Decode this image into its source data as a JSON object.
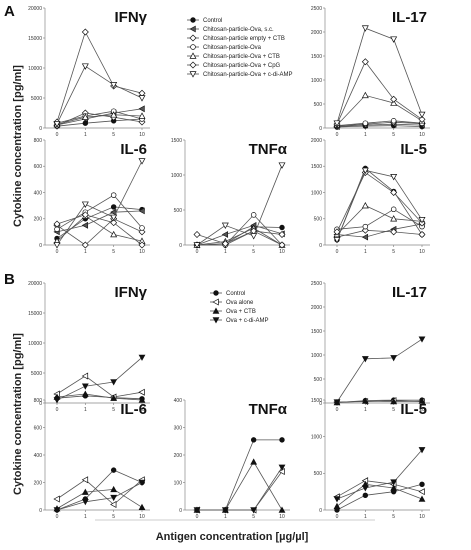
{
  "figure": {
    "panel_labels": [
      "A",
      "B"
    ],
    "y_axis_label": "Cytokine concentration [pg/ml]",
    "x_axis_label": "Antigen concentration [µg/µl]"
  },
  "legends": {
    "A": [
      "Control",
      "Chitosan-particle-Ova, s.c.",
      "Chitosan-particle empty + CTB",
      "Chitosan-particle-Ova",
      "Chitosan-particle-Ova + CTB",
      "Chitosan-particle-Ova + CpG",
      "Chitosan-particle-Ova + c-di-AMP"
    ],
    "B": [
      "Control",
      "Ova alone",
      "Ova + CTB",
      "Ova + c-di-AMP"
    ]
  },
  "chart_data": [
    {
      "type": "line",
      "group": "A",
      "title": "IFNγ",
      "x": [
        "0",
        "1",
        "5",
        "10"
      ],
      "ylim": [
        0,
        20000
      ],
      "yticks": [
        "0",
        "5000",
        "10000",
        "15000",
        "20000"
      ],
      "series": [
        {
          "name": "Control",
          "values": [
            300,
            800,
            1200,
            1500
          ]
        },
        {
          "name": "Chitosan-particle-Ova, s.c.",
          "values": [
            500,
            1500,
            2500,
            3200
          ]
        },
        {
          "name": "Chitosan-particle empty + CTB",
          "values": [
            400,
            2500,
            1800,
            1000
          ]
        },
        {
          "name": "Chitosan-particle-Ova",
          "values": [
            800,
            2000,
            2800,
            1500
          ]
        },
        {
          "name": "Chitosan-particle-Ova + CTB",
          "values": [
            600,
            1800,
            2200,
            2000
          ]
        },
        {
          "name": "Chitosan-particle-Ova + CpG",
          "values": [
            1000,
            16000,
            7000,
            5800
          ]
        },
        {
          "name": "Chitosan-particle-Ova + c-di-AMP",
          "values": [
            700,
            10300,
            7200,
            5000
          ]
        }
      ]
    },
    {
      "type": "line",
      "group": "A",
      "title": "IL-17",
      "x": [
        "0",
        "1",
        "5",
        "10"
      ],
      "ylim": [
        0,
        2500
      ],
      "yticks": [
        "0",
        "500",
        "1000",
        "1500",
        "2000",
        "2500"
      ],
      "series": [
        {
          "name": "Control",
          "values": [
            20,
            40,
            50,
            30
          ]
        },
        {
          "name": "Chitosan-particle-Ova, s.c.",
          "values": [
            30,
            60,
            80,
            60
          ]
        },
        {
          "name": "Chitosan-particle empty + CTB",
          "values": [
            40,
            80,
            120,
            90
          ]
        },
        {
          "name": "Chitosan-particle-Ova",
          "values": [
            50,
            100,
            150,
            100
          ]
        },
        {
          "name": "Chitosan-particle-Ova + CTB",
          "values": [
            60,
            680,
            520,
            150
          ]
        },
        {
          "name": "Chitosan-particle-Ova + CpG",
          "values": [
            80,
            1380,
            600,
            180
          ]
        },
        {
          "name": "Chitosan-particle-Ova + c-di-AMP",
          "values": [
            100,
            2080,
            1850,
            280
          ]
        }
      ]
    },
    {
      "type": "line",
      "group": "A",
      "title": "IL-6",
      "x": [
        "0",
        "1",
        "5",
        "10"
      ],
      "ylim": [
        0,
        800
      ],
      "yticks": [
        "0",
        "200",
        "400",
        "600",
        "800"
      ],
      "series": [
        {
          "name": "Control",
          "values": [
            50,
            200,
            290,
            270
          ]
        },
        {
          "name": "Chitosan-particle-Ova, s.c.",
          "values": [
            100,
            150,
            250,
            260
          ]
        },
        {
          "name": "Chitosan-particle empty + CTB",
          "values": [
            150,
            0,
            200,
            100
          ]
        },
        {
          "name": "Chitosan-particle-Ova",
          "values": [
            120,
            250,
            380,
            130
          ]
        },
        {
          "name": "Chitosan-particle-Ova + CTB",
          "values": [
            30,
            220,
            80,
            30
          ]
        },
        {
          "name": "Chitosan-particle-Ova + CpG",
          "values": [
            160,
            230,
            170,
            0
          ]
        },
        {
          "name": "Chitosan-particle-Ova + c-di-AMP",
          "values": [
            0,
            310,
            210,
            640
          ]
        }
      ]
    },
    {
      "type": "line",
      "group": "A",
      "title": "TNFα",
      "x": [
        "0",
        "1",
        "5",
        "10"
      ],
      "ylim": [
        0,
        1500
      ],
      "yticks": [
        "0",
        "500",
        "1000",
        "1500"
      ],
      "series": [
        {
          "name": "Control",
          "values": [
            0,
            20,
            260,
            250
          ]
        },
        {
          "name": "Chitosan-particle-Ova, s.c.",
          "values": [
            0,
            150,
            280,
            160
          ]
        },
        {
          "name": "Chitosan-particle empty + CTB",
          "values": [
            0,
            0,
            200,
            150
          ]
        },
        {
          "name": "Chitosan-particle-Ova",
          "values": [
            0,
            0,
            430,
            0
          ]
        },
        {
          "name": "Chitosan-particle-Ova + CTB",
          "values": [
            0,
            50,
            240,
            0
          ]
        },
        {
          "name": "Chitosan-particle-Ova + CpG",
          "values": [
            150,
            20,
            200,
            0
          ]
        },
        {
          "name": "Chitosan-particle-Ova + c-di-AMP",
          "values": [
            0,
            280,
            130,
            1140
          ]
        }
      ]
    },
    {
      "type": "line",
      "group": "A",
      "title": "IL-5",
      "x": [
        "0",
        "1",
        "5",
        "10"
      ],
      "ylim": [
        0,
        2000
      ],
      "yticks": [
        "0",
        "500",
        "1000",
        "1500",
        "2000"
      ],
      "series": [
        {
          "name": "Control",
          "values": [
            100,
            1460,
            1020,
            200
          ]
        },
        {
          "name": "Chitosan-particle-Ova, s.c.",
          "values": [
            200,
            150,
            300,
            400
          ]
        },
        {
          "name": "Chitosan-particle empty + CTB",
          "values": [
            150,
            280,
            250,
            200
          ]
        },
        {
          "name": "Chitosan-particle-Ova",
          "values": [
            300,
            350,
            680,
            350
          ]
        },
        {
          "name": "Chitosan-particle-Ova + CTB",
          "values": [
            200,
            750,
            500,
            450
          ]
        },
        {
          "name": "Chitosan-particle-Ova + CpG",
          "values": [
            250,
            1380,
            1000,
            420
          ]
        },
        {
          "name": "Chitosan-particle-Ova + c-di-AMP",
          "values": [
            100,
            1420,
            1300,
            480
          ]
        }
      ]
    },
    {
      "type": "line",
      "group": "B",
      "title": "IFNγ",
      "x": [
        "0",
        "1",
        "5",
        "10"
      ],
      "ylim": [
        0,
        20000
      ],
      "yticks": [
        "0",
        "5000",
        "10000",
        "15000",
        "20000"
      ],
      "series": [
        {
          "name": "Control",
          "values": [
            800,
            1200,
            900,
            700
          ]
        },
        {
          "name": "Ova alone",
          "values": [
            1500,
            4500,
            1000,
            1800
          ]
        },
        {
          "name": "Ova + CTB",
          "values": [
            1000,
            1500,
            800,
            500
          ]
        },
        {
          "name": "Ova + c-di-AMP",
          "values": [
            500,
            2800,
            3500,
            7600
          ]
        }
      ]
    },
    {
      "type": "line",
      "group": "B",
      "title": "IL-17",
      "x": [
        "0",
        "1",
        "5",
        "10"
      ],
      "ylim": [
        0,
        2500
      ],
      "yticks": [
        "0",
        "500",
        "1000",
        "1500",
        "2000",
        "2500"
      ],
      "series": [
        {
          "name": "Control",
          "values": [
            10,
            50,
            60,
            60
          ]
        },
        {
          "name": "Ova alone",
          "values": [
            20,
            30,
            50,
            30
          ]
        },
        {
          "name": "Ova + CTB",
          "values": [
            10,
            40,
            30,
            40
          ]
        },
        {
          "name": "Ova + c-di-AMP",
          "values": [
            20,
            920,
            940,
            1330
          ]
        }
      ]
    },
    {
      "type": "line",
      "group": "B",
      "title": "IL-6",
      "x": [
        "0",
        "1",
        "5",
        "10"
      ],
      "ylim": [
        0,
        800
      ],
      "yticks": [
        "0",
        "200",
        "400",
        "600",
        "800"
      ],
      "series": [
        {
          "name": "Control",
          "values": [
            0,
            80,
            290,
            200
          ]
        },
        {
          "name": "Ova alone",
          "values": [
            80,
            220,
            40,
            220
          ]
        },
        {
          "name": "Ova + CTB",
          "values": [
            10,
            130,
            150,
            20
          ]
        },
        {
          "name": "Ova + c-di-AMP",
          "values": [
            0,
            60,
            90,
            200
          ]
        }
      ]
    },
    {
      "type": "line",
      "group": "B",
      "title": "TNFα",
      "x": [
        "0",
        "1",
        "5",
        "10"
      ],
      "ylim": [
        0,
        400
      ],
      "yticks": [
        "0",
        "100",
        "200",
        "300",
        "400"
      ],
      "series": [
        {
          "name": "Control",
          "values": [
            0,
            0,
            255,
            255
          ]
        },
        {
          "name": "Ova alone",
          "values": [
            0,
            0,
            0,
            140
          ]
        },
        {
          "name": "Ova + CTB",
          "values": [
            0,
            0,
            175,
            0
          ]
        },
        {
          "name": "Ova + c-di-AMP",
          "values": [
            0,
            0,
            0,
            155
          ]
        }
      ]
    },
    {
      "type": "line",
      "group": "B",
      "title": "IL-5",
      "x": [
        "0",
        "1",
        "5",
        "10"
      ],
      "ylim": [
        0,
        1500
      ],
      "yticks": [
        "0",
        "500",
        "1000",
        "1500"
      ],
      "series": [
        {
          "name": "Control",
          "values": [
            0,
            200,
            250,
            350
          ]
        },
        {
          "name": "Ova alone",
          "values": [
            180,
            400,
            350,
            250
          ]
        },
        {
          "name": "Ova + CTB",
          "values": [
            50,
            350,
            300,
            150
          ]
        },
        {
          "name": "Ova + c-di-AMP",
          "values": [
            150,
            300,
            380,
            820
          ]
        }
      ]
    }
  ],
  "colors": {
    "line": "#555555",
    "marker": "#111111",
    "axis": "#888888"
  }
}
